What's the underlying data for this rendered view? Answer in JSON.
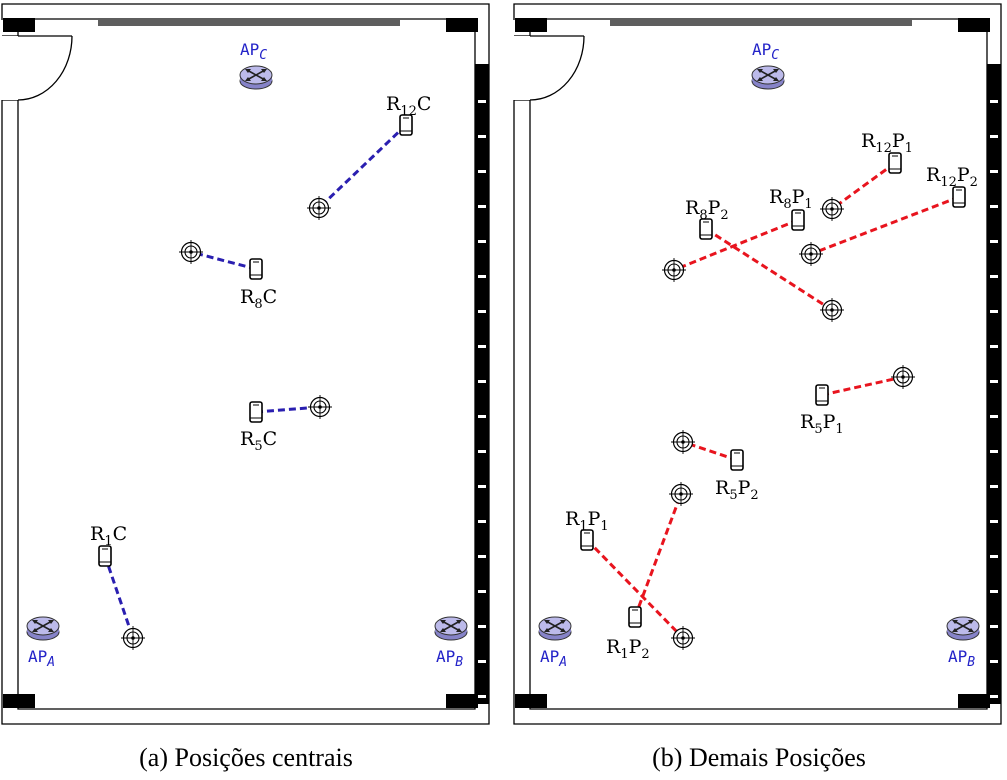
{
  "colors": {
    "central_link": "#2a1fb0",
    "other_link": "#e8141e",
    "ap_label": "#2323c8",
    "ap_fill": "#b9b6e8"
  },
  "panel_a": {
    "caption": "(a) Posições centrais",
    "access_points": [
      {
        "id": "ap-a",
        "label": "AP",
        "sub": "A"
      },
      {
        "id": "ap-b",
        "label": "AP",
        "sub": "B"
      },
      {
        "id": "ap-c",
        "label": "AP",
        "sub": "C"
      }
    ],
    "devices": [
      {
        "id": "r12c",
        "label": "R",
        "sub": "12",
        "suffix": "C"
      },
      {
        "id": "r8c",
        "label": "R",
        "sub": "8",
        "suffix": "C"
      },
      {
        "id": "r5c",
        "label": "R",
        "sub": "5",
        "suffix": "C"
      },
      {
        "id": "r1c",
        "label": "R",
        "sub": "1",
        "suffix": "C"
      }
    ]
  },
  "panel_b": {
    "caption": "(b) Demais Posições",
    "access_points": [
      {
        "id": "ap-a",
        "label": "AP",
        "sub": "A"
      },
      {
        "id": "ap-b",
        "label": "AP",
        "sub": "B"
      },
      {
        "id": "ap-c",
        "label": "AP",
        "sub": "C"
      }
    ],
    "devices": [
      {
        "id": "r12p1",
        "label": "R",
        "sub": "12",
        "suffix": "P",
        "suffix_sub": "1"
      },
      {
        "id": "r12p2",
        "label": "R",
        "sub": "12",
        "suffix": "P",
        "suffix_sub": "2"
      },
      {
        "id": "r8p2",
        "label": "R",
        "sub": "8",
        "suffix": "P",
        "suffix_sub": "2"
      },
      {
        "id": "r8p1",
        "label": "R",
        "sub": "8",
        "suffix": "P",
        "suffix_sub": "1"
      },
      {
        "id": "r5p1",
        "label": "R",
        "sub": "5",
        "suffix": "P",
        "suffix_sub": "1"
      },
      {
        "id": "r5p2",
        "label": "R",
        "sub": "5",
        "suffix": "P",
        "suffix_sub": "2"
      },
      {
        "id": "r1p1",
        "label": "R",
        "sub": "1",
        "suffix": "P",
        "suffix_sub": "1"
      },
      {
        "id": "r1p2",
        "label": "R",
        "sub": "1",
        "suffix": "P",
        "suffix_sub": "2"
      }
    ]
  }
}
